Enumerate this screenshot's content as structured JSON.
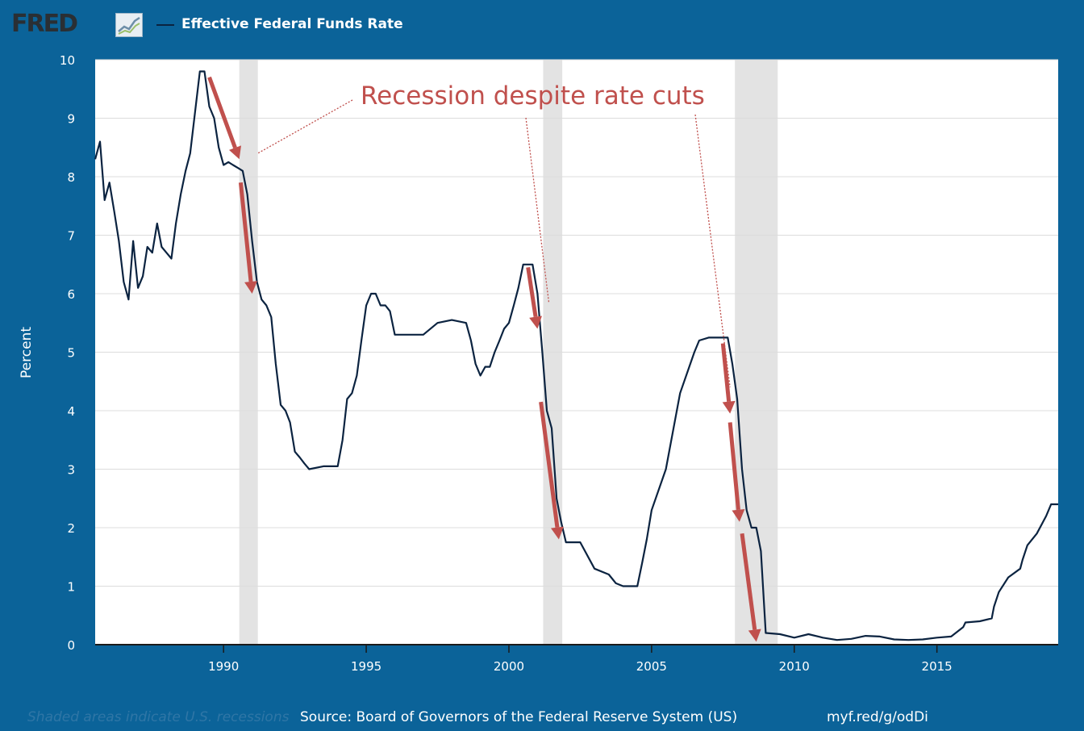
{
  "header": {
    "logo": "FRED",
    "logo_icon": "line-chart-icon",
    "series_label": "Effective Federal Funds Rate"
  },
  "footer": {
    "note": "Shaded areas indicate U.S. recessions",
    "source": "Source: Board of Governors of the Federal Reserve System (US)",
    "url": "myf.red/g/odDi"
  },
  "colors": {
    "background": "#0b6399",
    "plot_background": "#ffffff",
    "series_line": "#0b2340",
    "recession_shade": "#e3e3e3",
    "annotation": "#c0504d"
  },
  "chart_data": {
    "type": "line",
    "ylabel": "Percent",
    "xlabel": "",
    "ylim": [
      0,
      10
    ],
    "xlim": [
      1985.5,
      2019.25
    ],
    "yticks": [
      0,
      1,
      2,
      3,
      4,
      5,
      6,
      7,
      8,
      9,
      10
    ],
    "xticks": [
      1990,
      1995,
      2000,
      2005,
      2010,
      2015
    ],
    "grid": true,
    "recessions": [
      [
        1990.55,
        1991.2
      ],
      [
        2001.2,
        2001.87
      ],
      [
        2007.92,
        2009.42
      ]
    ],
    "annotation_text": "Recession despite rate cuts",
    "series": [
      {
        "name": "Effective Federal Funds Rate",
        "x": [
          1985.5,
          1985.67,
          1985.83,
          1986.0,
          1986.17,
          1986.33,
          1986.5,
          1986.67,
          1986.83,
          1987.0,
          1987.17,
          1987.33,
          1987.5,
          1987.67,
          1987.83,
          1988.0,
          1988.17,
          1988.33,
          1988.5,
          1988.67,
          1988.83,
          1989.0,
          1989.17,
          1989.33,
          1989.5,
          1989.67,
          1989.83,
          1990.0,
          1990.17,
          1990.33,
          1990.5,
          1990.67,
          1990.83,
          1991.0,
          1991.17,
          1991.33,
          1991.5,
          1991.67,
          1991.83,
          1992.0,
          1992.17,
          1992.33,
          1992.5,
          1992.67,
          1992.83,
          1993.0,
          1993.5,
          1994.0,
          1994.17,
          1994.33,
          1994.5,
          1994.67,
          1994.83,
          1995.0,
          1995.17,
          1995.33,
          1995.5,
          1995.67,
          1995.83,
          1996.0,
          1996.5,
          1997.0,
          1997.5,
          1998.0,
          1998.5,
          1998.67,
          1998.83,
          1999.0,
          1999.17,
          1999.33,
          1999.5,
          1999.67,
          1999.83,
          2000.0,
          2000.17,
          2000.33,
          2000.5,
          2000.67,
          2000.83,
          2001.0,
          2001.17,
          2001.33,
          2001.5,
          2001.67,
          2001.83,
          2002.0,
          2002.5,
          2003.0,
          2003.5,
          2003.75,
          2004.0,
          2004.5,
          2004.67,
          2004.83,
          2005.0,
          2005.5,
          2006.0,
          2006.5,
          2006.67,
          2007.0,
          2007.5,
          2007.67,
          2007.83,
          2008.0,
          2008.17,
          2008.33,
          2008.5,
          2008.67,
          2008.83,
          2009.0,
          2009.5,
          2010.0,
          2010.5,
          2011.0,
          2011.5,
          2012.0,
          2012.5,
          2013.0,
          2013.5,
          2014.0,
          2014.5,
          2015.0,
          2015.5,
          2015.92,
          2016.0,
          2016.5,
          2016.92,
          2017.0,
          2017.17,
          2017.5,
          2017.92,
          2018.0,
          2018.17,
          2018.5,
          2018.83,
          2019.0,
          2019.25
        ],
        "values": [
          8.3,
          8.6,
          7.6,
          7.9,
          7.4,
          6.9,
          6.2,
          5.9,
          6.9,
          6.1,
          6.3,
          6.8,
          6.7,
          7.2,
          6.8,
          6.7,
          6.6,
          7.2,
          7.7,
          8.1,
          8.4,
          9.1,
          9.8,
          9.8,
          9.2,
          9.0,
          8.5,
          8.2,
          8.25,
          8.2,
          8.15,
          8.1,
          7.7,
          6.9,
          6.2,
          5.9,
          5.8,
          5.6,
          4.8,
          4.1,
          4.0,
          3.8,
          3.3,
          3.2,
          3.1,
          3.0,
          3.05,
          3.05,
          3.5,
          4.2,
          4.3,
          4.6,
          5.2,
          5.8,
          6.0,
          6.0,
          5.8,
          5.8,
          5.7,
          5.3,
          5.3,
          5.3,
          5.5,
          5.55,
          5.5,
          5.2,
          4.8,
          4.6,
          4.75,
          4.75,
          5.0,
          5.2,
          5.4,
          5.5,
          5.8,
          6.1,
          6.5,
          6.5,
          6.5,
          6.0,
          5.0,
          4.0,
          3.7,
          2.5,
          2.1,
          1.75,
          1.75,
          1.3,
          1.2,
          1.05,
          1.0,
          1.0,
          1.4,
          1.8,
          2.3,
          3.0,
          4.3,
          5.0,
          5.2,
          5.25,
          5.25,
          5.25,
          4.8,
          4.2,
          3.0,
          2.3,
          2.0,
          2.0,
          1.6,
          0.2,
          0.18,
          0.12,
          0.18,
          0.12,
          0.08,
          0.1,
          0.15,
          0.14,
          0.09,
          0.08,
          0.09,
          0.12,
          0.14,
          0.3,
          0.38,
          0.4,
          0.45,
          0.65,
          0.9,
          1.15,
          1.3,
          1.45,
          1.7,
          1.9,
          2.2,
          2.4,
          2.4
        ]
      }
    ],
    "arrows": [
      {
        "from": [
          1989.5,
          9.7
        ],
        "to": [
          1990.55,
          8.3
        ]
      },
      {
        "from": [
          1990.6,
          7.9
        ],
        "to": [
          1991.0,
          6.0
        ]
      },
      {
        "from": [
          2000.67,
          6.45
        ],
        "to": [
          2001.0,
          5.4
        ]
      },
      {
        "from": [
          2001.12,
          4.15
        ],
        "to": [
          2001.75,
          1.8
        ]
      },
      {
        "from": [
          2007.5,
          5.15
        ],
        "to": [
          2007.75,
          3.95
        ]
      },
      {
        "from": [
          2007.75,
          3.8
        ],
        "to": [
          2008.08,
          2.1
        ]
      },
      {
        "from": [
          2008.17,
          1.9
        ],
        "to": [
          2008.67,
          0.05
        ]
      }
    ],
    "leader_lines": [
      {
        "to": [
          1991.2,
          8.4
        ]
      },
      {
        "to": [
          2001.4,
          5.85
        ]
      },
      {
        "to": [
          2007.75,
          4.4
        ]
      }
    ]
  }
}
